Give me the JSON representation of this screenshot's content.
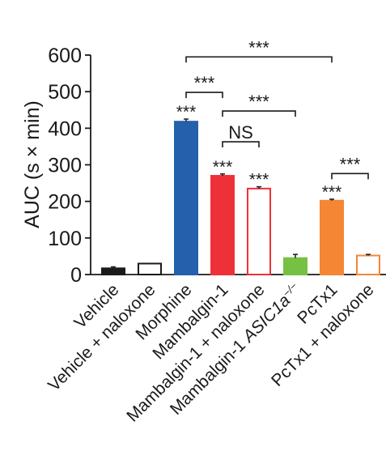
{
  "chart_data": {
    "type": "bar",
    "ylabel": "AUC (s × min)",
    "ylim": [
      0,
      600
    ],
    "yticks": [
      "0",
      "100",
      "200",
      "300",
      "400",
      "500",
      "600"
    ],
    "categories": [
      {
        "label": "Vehicle",
        "italic_suffix": "",
        "superscript": ""
      },
      {
        "label": "Vehicle + naloxone",
        "italic_suffix": "",
        "superscript": ""
      },
      {
        "label": "Morphine",
        "italic_suffix": "",
        "superscript": ""
      },
      {
        "label": "Mambalgin-1",
        "italic_suffix": "",
        "superscript": ""
      },
      {
        "label": "Mambalgin-1 + naloxone",
        "italic_suffix": "",
        "superscript": ""
      },
      {
        "label": "Mambalgin-1 ",
        "italic_suffix": "ASIC1a",
        "superscript": "−/−"
      },
      {
        "label": "PcTx1",
        "italic_suffix": "",
        "superscript": ""
      },
      {
        "label": "PcTx1 + naloxone",
        "italic_suffix": "",
        "superscript": ""
      }
    ],
    "values": [
      17,
      30,
      418,
      270,
      235,
      45,
      202,
      52
    ],
    "errors": [
      4,
      0,
      7,
      5,
      5,
      10,
      4,
      3
    ],
    "fills": [
      "#1a1a1a",
      "#ffffff",
      "#2460ac",
      "#ee3138",
      "#ffffff",
      "#76c043",
      "#f58634",
      "#ffffff"
    ],
    "strokes": [
      "#1a1a1a",
      "#1a1a1a",
      "#2460ac",
      "#ee3138",
      "#ee3138",
      "#76c043",
      "#f58634",
      "#f58634"
    ],
    "bar_significance": [
      "",
      "",
      "***",
      "***",
      "***",
      "",
      "***",
      ""
    ],
    "comparisons": [
      {
        "from": 2,
        "to": 6,
        "label": "***",
        "level": 595
      },
      {
        "from": 2,
        "to": 3,
        "label": "***",
        "level": 498
      },
      {
        "from": 3,
        "to": 5,
        "label": "***",
        "level": 447
      },
      {
        "from": 3,
        "to": 4,
        "label": "NS",
        "level": 363
      },
      {
        "from": 6,
        "to": 7,
        "label": "***",
        "level": 276
      }
    ]
  }
}
